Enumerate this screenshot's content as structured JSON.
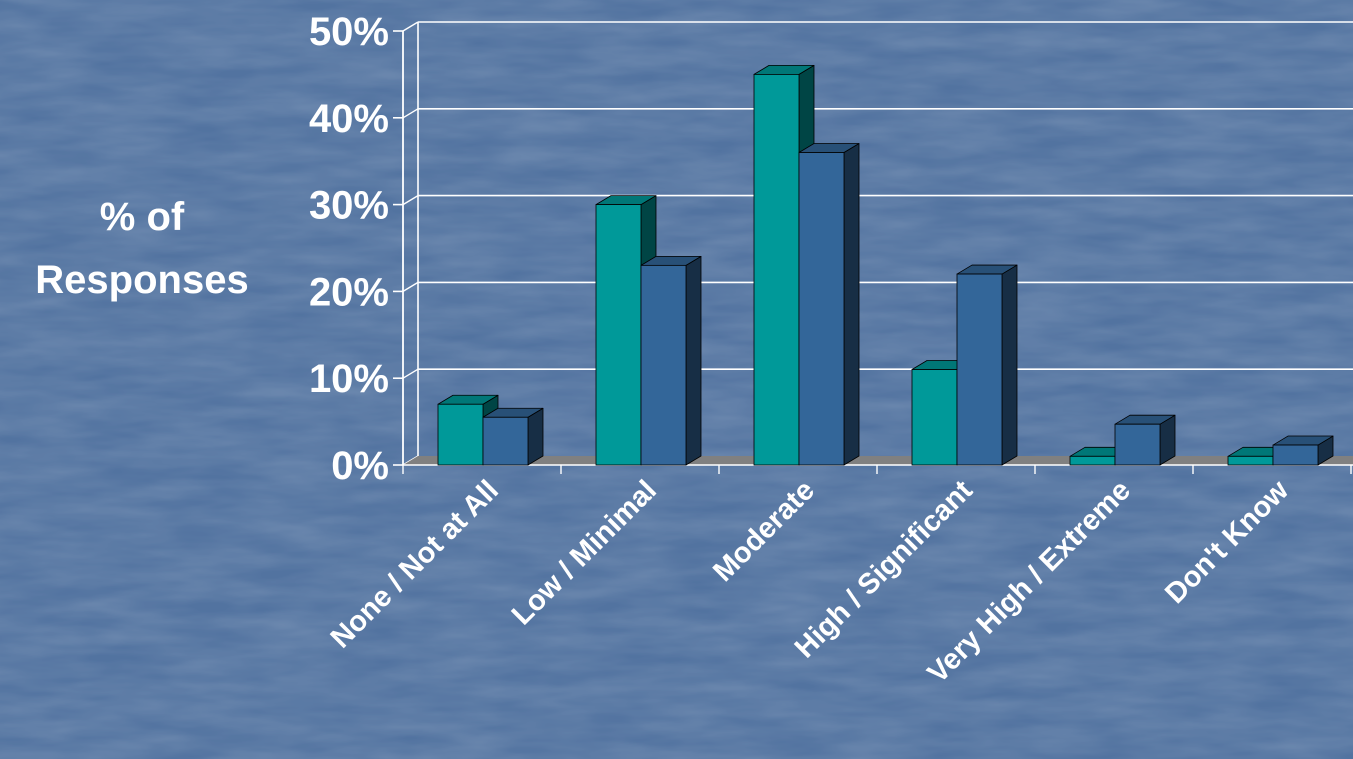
{
  "chart_data": {
    "type": "bar",
    "title": "",
    "xlabel": "",
    "ylabel_lines": [
      "% of",
      "Responses"
    ],
    "categories": [
      "None / Not at All",
      "Low / Minimal",
      "Moderate",
      "High / Significant",
      "Very High / Extreme",
      "Don't Know"
    ],
    "series": [
      {
        "values": [
          7,
          30,
          45,
          11,
          1,
          1
        ],
        "color": "#009999"
      },
      {
        "values": [
          5.5,
          23,
          36,
          22,
          4.7,
          2.3
        ],
        "color": "#336699"
      }
    ],
    "ylim": [
      0,
      50
    ],
    "yticks": [
      {
        "value": 0,
        "label": "0%"
      },
      {
        "value": 10,
        "label": "10%"
      },
      {
        "value": 20,
        "label": "20%"
      },
      {
        "value": 30,
        "label": "30%"
      },
      {
        "value": 40,
        "label": "40%"
      },
      {
        "value": 50,
        "label": "50%"
      }
    ],
    "grid": true,
    "legend": "none",
    "style": "3d-clustered-column"
  },
  "colors": {
    "background": "#5273a0",
    "grid": "#ffffff",
    "floor": "#808080",
    "text": "#ffffff"
  }
}
